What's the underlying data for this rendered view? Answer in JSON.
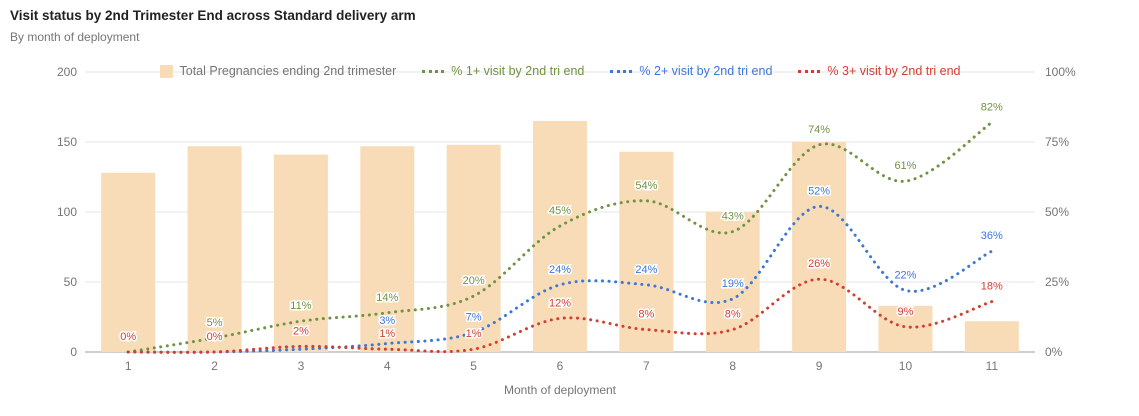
{
  "title": "Visit status by 2nd Trimester End across Standard delivery arm",
  "subtitle": "By month of deployment",
  "chart_data": {
    "type": "combo-bar-line",
    "categories": [
      "1",
      "2",
      "3",
      "4",
      "5",
      "6",
      "7",
      "8",
      "9",
      "10",
      "11"
    ],
    "xlabel": "Month of deployment",
    "grid": true,
    "legend_position": "top",
    "left_axis": {
      "max": 200,
      "tick_values": [
        0,
        50,
        100,
        150,
        200
      ],
      "tick_labels": [
        "0",
        "50",
        "100",
        "150",
        "200"
      ]
    },
    "right_axis": {
      "max": 100,
      "tick_values": [
        0,
        25,
        50,
        75,
        100
      ],
      "tick_labels": [
        "0%",
        "25%",
        "50%",
        "75%",
        "100%"
      ]
    },
    "bar_series": {
      "name": "Total Pregnancies ending 2nd trimester",
      "color": "#f8dcb8",
      "label_color": "#757575",
      "axis": "left",
      "values": [
        128,
        147,
        141,
        147,
        148,
        165,
        143,
        100,
        150,
        33,
        22
      ]
    },
    "line_series": [
      {
        "name": "% 1+ visit by 2nd tri end",
        "color": "#709243",
        "axis": "right",
        "values": [
          0,
          5,
          11,
          14,
          20,
          45,
          54,
          43,
          74,
          61,
          82
        ],
        "point_labels": [
          null,
          "5%",
          "11%",
          "14%",
          "20%",
          "45%",
          "54%",
          "43%",
          "74%",
          "61%",
          "82%"
        ]
      },
      {
        "name": "% 2+ visit by 2nd tri end",
        "color": "#3c78d8",
        "axis": "right",
        "values": [
          0,
          0,
          1,
          3,
          7,
          24,
          24,
          19,
          52,
          22,
          36
        ],
        "point_labels": [
          null,
          null,
          null,
          "3%",
          "7%",
          "24%",
          "24%",
          "19%",
          "52%",
          "22%",
          "36%"
        ]
      },
      {
        "name": "% 3+ visit by 2nd tri end",
        "color": "#d23f31",
        "axis": "right",
        "values": [
          0,
          0,
          2,
          1,
          1,
          12,
          8,
          8,
          26,
          9,
          18
        ],
        "point_labels": [
          "0%",
          "0%",
          "2%",
          "1%",
          "1%",
          "12%",
          "8%",
          "8%",
          "26%",
          "9%",
          "18%"
        ]
      }
    ]
  }
}
